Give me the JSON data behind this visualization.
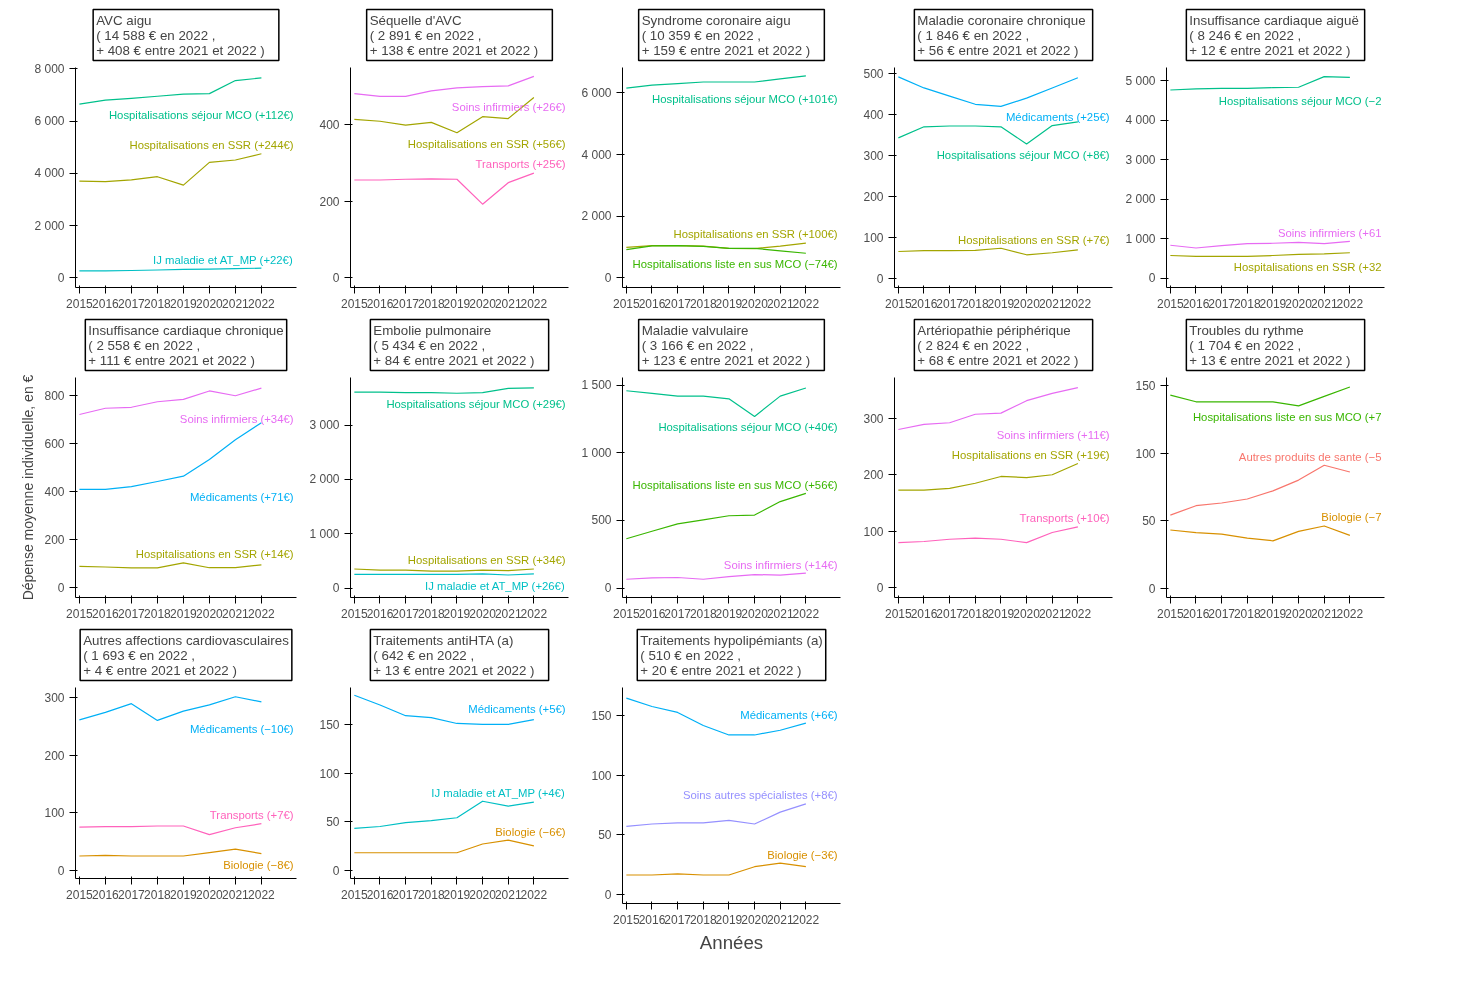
{
  "chart_data": [
    {
      "type": "line",
      "title": "AVC aigu\n( 14 588 € en  2022 ,\n+ 408 € entre  2021  et  2022 )",
      "x": [
        2015,
        2016,
        2017,
        2018,
        2019,
        2020,
        2021,
        2022
      ],
      "xlim": [
        2014.85,
        2023.35
      ],
      "xticks": [
        2015,
        2016,
        2017,
        2018,
        2019,
        2020,
        2021,
        2022
      ],
      "ylim": [
        -370,
        8050
      ],
      "yticks": [
        0,
        {
          "value": 2000,
          "label": "2 000"
        },
        {
          "value": 4000,
          "label": "4 000"
        },
        {
          "value": 6000,
          "label": "6 000"
        },
        {
          "value": 8000,
          "label": "8 000"
        }
      ],
      "series": [
        {
          "name": "Hospitalisations séjour MCO (+112€)",
          "color": "#00c08b",
          "values": [
            6650,
            6800,
            6870,
            6950,
            7030,
            7050,
            7550,
            7650
          ]
        },
        {
          "name": "Hospitalisations en SSR (+244€)",
          "color": "#a3a500",
          "values": [
            3700,
            3680,
            3750,
            3870,
            3550,
            4420,
            4510,
            4750
          ]
        },
        {
          "name": "IJ maladie et AT_MP (+22€)",
          "color": "#00bfc4",
          "values": [
            270,
            270,
            280,
            300,
            320,
            330,
            350,
            370
          ]
        }
      ]
    },
    {
      "type": "line",
      "title": "Séquelle d'AVC\n( 2 891 € en  2022 ,\n+ 138 € entre  2021  et  2022 )",
      "x": [
        2015,
        2016,
        2017,
        2018,
        2019,
        2020,
        2021,
        2022
      ],
      "xlim": [
        2014.85,
        2023.35
      ],
      "xticks": [
        2015,
        2016,
        2017,
        2018,
        2019,
        2020,
        2021,
        2022
      ],
      "ylim": [
        -25,
        548
      ],
      "yticks": [
        0,
        200,
        400
      ],
      "series": [
        {
          "name": "Soins infirmiers (+26€)",
          "color": "#e76bf3",
          "values": [
            480,
            473,
            473,
            487,
            495,
            498,
            500,
            525
          ]
        },
        {
          "name": "Hospitalisations en SSR (+56€)",
          "color": "#a3a500",
          "values": [
            413,
            408,
            398,
            405,
            378,
            420,
            415,
            470
          ]
        },
        {
          "name": "Transports (+25€)",
          "color": "#ff62bc",
          "values": [
            255,
            255,
            257,
            258,
            257,
            192,
            248,
            273
          ]
        }
      ]
    },
    {
      "type": "line",
      "title": "Syndrome coronaire aigu\n( 10 359 € en  2022 ,\n+ 159 € entre  2021  et  2022 )",
      "x": [
        2015,
        2016,
        2017,
        2018,
        2019,
        2020,
        2021,
        2022
      ],
      "xlim": [
        2014.85,
        2023.35
      ],
      "xticks": [
        2015,
        2016,
        2017,
        2018,
        2019,
        2020,
        2021,
        2022
      ],
      "ylim": [
        -310,
        6820
      ],
      "yticks": [
        0,
        {
          "value": 2000,
          "label": "2 000"
        },
        {
          "value": 4000,
          "label": "4 000"
        },
        {
          "value": 6000,
          "label": "6 000"
        }
      ],
      "series": [
        {
          "name": "Hospitalisations séjour MCO (+101€)",
          "color": "#00c08b",
          "values": [
            6150,
            6250,
            6300,
            6350,
            6350,
            6350,
            6450,
            6550
          ]
        },
        {
          "name": "Hospitalisations en SSR (+100€)",
          "color": "#a3a500",
          "values": [
            990,
            1050,
            1050,
            1030,
            960,
            950,
            1030,
            1130
          ]
        },
        {
          "name": "Hospitalisations liste en sus MCO (−74€)",
          "color": "#39b600",
          "values": [
            920,
            1040,
            1050,
            1020,
            960,
            960,
            880,
            800
          ]
        }
      ]
    },
    {
      "type": "line",
      "title": "Maladie coronaire chronique\n( 1 846 € en  2022 ,\n+ 56 € entre  2021  et  2022 )",
      "x": [
        2015,
        2016,
        2017,
        2018,
        2019,
        2020,
        2021,
        2022
      ],
      "xlim": [
        2014.85,
        2023.35
      ],
      "xticks": [
        2015,
        2016,
        2017,
        2018,
        2019,
        2020,
        2021,
        2022
      ],
      "ylim": [
        -23,
        515
      ],
      "yticks": [
        0,
        100,
        200,
        300,
        400,
        500
      ],
      "series": [
        {
          "name": "Médicaments (+25€)",
          "color": "#00b0f6",
          "values": [
            492,
            465,
            445,
            425,
            420,
            440,
            465,
            490
          ]
        },
        {
          "name": "Hospitalisations séjour MCO (+8€)",
          "color": "#00c08b",
          "values": [
            343,
            370,
            372,
            372,
            370,
            328,
            373,
            382
          ]
        },
        {
          "name": "Hospitalisations en SSR (+7€)",
          "color": "#a3a500",
          "values": [
            65,
            67,
            67,
            68,
            73,
            57,
            62,
            69
          ]
        }
      ]
    },
    {
      "type": "line",
      "title": "Insuffisance cardiaque aiguë\n( 8 246 € en  2022 ,\n+ 12 € entre  2021  et  2022 )",
      "x": [
        2015,
        2016,
        2017,
        2018,
        2019,
        2020,
        2021,
        2022
      ],
      "xlim": [
        2014.85,
        2023.35
      ],
      "xticks": [
        2015,
        2016,
        2017,
        2018,
        2019,
        2020,
        2021,
        2022
      ],
      "ylim": [
        -240,
        5330
      ],
      "yticks": [
        0,
        {
          "value": 1000,
          "label": "1 000"
        },
        {
          "value": 2000,
          "label": "2 000"
        },
        {
          "value": 3000,
          "label": "3 000"
        },
        {
          "value": 4000,
          "label": "4 000"
        },
        {
          "value": 5000,
          "label": "5 000"
        }
      ],
      "series": [
        {
          "name": "Hospitalisations séjour MCO (−2",
          "color": "#00c08b",
          "values": [
            4760,
            4790,
            4800,
            4800,
            4820,
            4830,
            5100,
            5080
          ]
        },
        {
          "name": "Soins infirmiers (+61",
          "color": "#e76bf3",
          "values": [
            830,
            760,
            820,
            870,
            880,
            900,
            870,
            930
          ]
        },
        {
          "name": "Hospitalisations en SSR (+32",
          "color": "#a3a500",
          "values": [
            570,
            550,
            550,
            550,
            570,
            600,
            610,
            640
          ]
        }
      ]
    },
    {
      "type": "line",
      "title": "Insuffisance cardiaque chronique\n( 2 558 € en  2022 ,\n+ 111 € entre  2021  et  2022 )",
      "ylabel": "Dépense moyenne individuelle, en €",
      "x": [
        2015,
        2016,
        2017,
        2018,
        2019,
        2020,
        2021,
        2022
      ],
      "xlim": [
        2014.85,
        2023.35
      ],
      "xticks": [
        2015,
        2016,
        2017,
        2018,
        2019,
        2020,
        2021,
        2022
      ],
      "ylim": [
        -40,
        876
      ],
      "yticks": [
        0,
        200,
        400,
        600,
        800
      ],
      "series": [
        {
          "name": "Soins infirmiers (+34€)",
          "color": "#e76bf3",
          "values": [
            722,
            748,
            752,
            775,
            785,
            820,
            800,
            832
          ]
        },
        {
          "name": "Médicaments (+71€)",
          "color": "#00b0f6",
          "values": [
            410,
            410,
            422,
            443,
            465,
            535,
            617,
            688
          ]
        },
        {
          "name": "Hospitalisations en SSR (+14€)",
          "color": "#a3a500",
          "values": [
            90,
            87,
            83,
            83,
            104,
            84,
            84,
            96
          ]
        }
      ]
    },
    {
      "type": "line",
      "title": "Embolie pulmonaire\n( 5 434 € en  2022 ,\n+ 84 € entre  2021  et  2022 )",
      "x": [
        2015,
        2016,
        2017,
        2018,
        2019,
        2020,
        2021,
        2022
      ],
      "xlim": [
        2014.85,
        2023.35
      ],
      "xticks": [
        2015,
        2016,
        2017,
        2018,
        2019,
        2020,
        2021,
        2022
      ],
      "ylim": [
        -175,
        3880
      ],
      "yticks": [
        0,
        {
          "value": 1000,
          "label": "1 000"
        },
        {
          "value": 2000,
          "label": "2 000"
        },
        {
          "value": 3000,
          "label": "3 000"
        }
      ],
      "series": [
        {
          "name": "Hospitalisations séjour MCO (+29€)",
          "color": "#00c08b",
          "values": [
            3610,
            3610,
            3600,
            3600,
            3590,
            3600,
            3680,
            3690
          ]
        },
        {
          "name": "Hospitalisations en SSR (+34€)",
          "color": "#a3a500",
          "values": [
            350,
            330,
            330,
            310,
            310,
            330,
            320,
            350
          ]
        },
        {
          "name": "IJ maladie et AT_MP (+26€)",
          "color": "#00bfc4",
          "values": [
            250,
            250,
            250,
            250,
            250,
            260,
            240,
            260
          ]
        }
      ]
    },
    {
      "type": "line",
      "title": "Maladie valvulaire\n( 3 166 € en  2022 ,\n+ 123 € entre  2021  et  2022 )",
      "x": [
        2015,
        2016,
        2017,
        2018,
        2019,
        2020,
        2021,
        2022
      ],
      "xlim": [
        2014.85,
        2023.35
      ],
      "xticks": [
        2015,
        2016,
        2017,
        2018,
        2019,
        2020,
        2021,
        2022
      ],
      "ylim": [
        -70,
        1558
      ],
      "yticks": [
        0,
        500,
        {
          "value": 1000,
          "label": "1 000"
        },
        {
          "value": 1500,
          "label": "1 500"
        }
      ],
      "series": [
        {
          "name": "Hospitalisations séjour MCO (+40€)",
          "color": "#00c08b",
          "values": [
            1460,
            1440,
            1420,
            1420,
            1400,
            1270,
            1420,
            1480
          ]
        },
        {
          "name": "Hospitalisations liste en sus MCO (+56€)",
          "color": "#39b600",
          "values": [
            365,
            420,
            475,
            505,
            535,
            540,
            640,
            700
          ]
        },
        {
          "name": "Soins infirmiers (+14€)",
          "color": "#e76bf3",
          "values": [
            65,
            75,
            78,
            65,
            85,
            100,
            95,
            110
          ]
        }
      ]
    },
    {
      "type": "line",
      "title": "Artériopathie périphérique\n( 2 824 € en  2022 ,\n+ 68 € entre  2021  et  2022 )",
      "x": [
        2015,
        2016,
        2017,
        2018,
        2019,
        2020,
        2021,
        2022
      ],
      "xlim": [
        2014.85,
        2023.35
      ],
      "xticks": [
        2015,
        2016,
        2017,
        2018,
        2019,
        2020,
        2021,
        2022
      ],
      "ylim": [
        -17,
        372
      ],
      "yticks": [
        0,
        100,
        200,
        300
      ],
      "series": [
        {
          "name": "Soins infirmiers (+11€)",
          "color": "#e76bf3",
          "values": [
            280,
            289,
            292,
            307,
            309,
            331,
            344,
            354
          ]
        },
        {
          "name": "Hospitalisations en SSR (+19€)",
          "color": "#a3a500",
          "values": [
            173,
            173,
            176,
            185,
            197,
            195,
            200,
            220
          ]
        },
        {
          "name": "Transports (+10€)",
          "color": "#ff62bc",
          "values": [
            80,
            82,
            86,
            88,
            86,
            80,
            98,
            108
          ]
        }
      ]
    },
    {
      "type": "line",
      "title": "Troubles du rythme\n( 1 704 € en  2022 ,\n+ 13 € entre  2021  et  2022 )",
      "x": [
        2015,
        2016,
        2017,
        2018,
        2019,
        2020,
        2021,
        2022
      ],
      "xlim": [
        2014.85,
        2023.35
      ],
      "xticks": [
        2015,
        2016,
        2017,
        2018,
        2019,
        2020,
        2021,
        2022
      ],
      "ylim": [
        -7,
        156
      ],
      "yticks": [
        0,
        50,
        100,
        150
      ],
      "series": [
        {
          "name": "Hospitalisations liste en sus MCO (+7",
          "color": "#39b600",
          "values": [
            143,
            138,
            138,
            138,
            138,
            135,
            142,
            149
          ]
        },
        {
          "name": "Autres produits de sante (−5",
          "color": "#f8766d",
          "values": [
            54,
            61,
            63,
            66,
            72,
            80,
            91,
            86
          ]
        },
        {
          "name": "Biologie (−7",
          "color": "#d89000",
          "values": [
            43,
            41,
            40,
            37,
            35,
            42,
            46,
            39
          ]
        }
      ]
    },
    {
      "type": "line",
      "title": "Autres affections cardiovasculaires\n( 1 693 € en  2022 ,\n+ 4 € entre  2021  et  2022 )",
      "x": [
        2015,
        2016,
        2017,
        2018,
        2019,
        2020,
        2021,
        2022
      ],
      "xlim": [
        2014.85,
        2023.35
      ],
      "xticks": [
        2015,
        2016,
        2017,
        2018,
        2019,
        2020,
        2021,
        2022
      ],
      "ylim": [
        -14,
        317
      ],
      "yticks": [
        0,
        100,
        200,
        300
      ],
      "series": [
        {
          "name": "Médicaments (−10€)",
          "color": "#00b0f6",
          "values": [
            261,
            274,
            289,
            260,
            276,
            287,
            301,
            292
          ]
        },
        {
          "name": "Transports (+7€)",
          "color": "#ff62bc",
          "values": [
            75,
            76,
            76,
            77,
            77,
            62,
            74,
            81
          ]
        },
        {
          "name": "Biologie (−8€)",
          "color": "#d89000",
          "values": [
            25,
            26,
            25,
            25,
            25,
            31,
            37,
            29
          ]
        }
      ]
    },
    {
      "type": "line",
      "title": "Traitements antiHTA (a)\n( 642 € en  2022 ,\n+ 13 € entre  2021  et  2022 )",
      "x": [
        2015,
        2016,
        2017,
        2018,
        2019,
        2020,
        2021,
        2022
      ],
      "xlim": [
        2014.85,
        2023.35
      ],
      "xticks": [
        2015,
        2016,
        2017,
        2018,
        2019,
        2020,
        2021,
        2022
      ],
      "ylim": [
        -8.5,
        188
      ],
      "yticks": [
        0,
        50,
        100,
        150
      ],
      "series": [
        {
          "name": "Médicaments (+5€)",
          "color": "#00b0f6",
          "values": [
            180,
            170,
            159,
            157,
            151,
            150,
            150,
            155
          ]
        },
        {
          "name": "IJ maladie et AT_MP (+4€)",
          "color": "#00bfc4",
          "values": [
            43,
            45,
            49,
            51,
            54,
            71,
            66,
            70
          ]
        },
        {
          "name": "Biologie (−6€)",
          "color": "#d89000",
          "values": [
            18,
            18,
            18,
            18,
            18,
            27,
            31,
            25
          ]
        }
      ]
    },
    {
      "type": "line",
      "title": "Traitements hypolipémiants (a)\n( 510 € en  2022 ,\n+ 20 € entre  2021  et  2022 )",
      "xlabel": "Années",
      "x": [
        2015,
        2016,
        2017,
        2018,
        2019,
        2020,
        2021,
        2022
      ],
      "xlim": [
        2014.85,
        2023.35
      ],
      "xticks": [
        2015,
        2016,
        2017,
        2018,
        2019,
        2020,
        2021,
        2022
      ],
      "ylim": [
        -8,
        174
      ],
      "yticks": [
        0,
        50,
        100,
        150
      ],
      "series": [
        {
          "name": "Médicaments (+6€)",
          "color": "#00b0f6",
          "values": [
            165,
            158,
            153,
            142,
            134,
            134,
            138,
            144
          ]
        },
        {
          "name": "Soins autres spécialistes (+8€)",
          "color": "#9590ff",
          "values": [
            57,
            59,
            60,
            60,
            62,
            59,
            69,
            76
          ]
        },
        {
          "name": "Biologie (−3€)",
          "color": "#d89000",
          "values": [
            16,
            16,
            17,
            16,
            16,
            23,
            26,
            23
          ]
        }
      ]
    }
  ]
}
